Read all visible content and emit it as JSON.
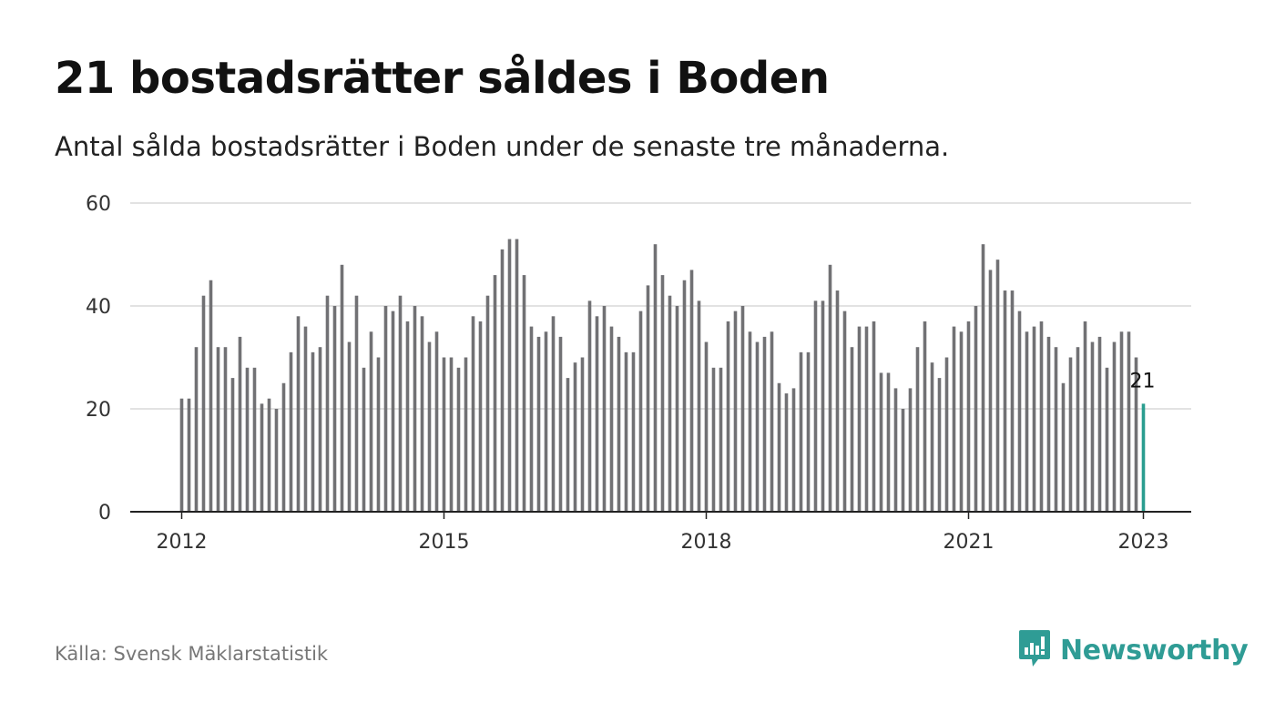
{
  "header": {
    "title": "21 bostadsrätter såldes i Boden",
    "subtitle": "Antal sålda bostadsrätter i Boden under de senaste tre månaderna."
  },
  "footer": {
    "source": "Källa: Svensk Mäklarstatistik",
    "brand": "Newsworthy"
  },
  "colors": {
    "bar": "#717174",
    "highlight": "#2a9d8f",
    "grid": "#d9d9d9",
    "axis": "#222222",
    "brand": "#2f9c95"
  },
  "icons": {
    "brand_logo": "bar-chart-speech-bubble-icon"
  },
  "chart_data": {
    "type": "bar",
    "title": "21 bostadsrätter såldes i Boden",
    "xlabel": "",
    "ylabel": "",
    "ylim": [
      0,
      60
    ],
    "yticks": [
      0,
      20,
      40,
      60
    ],
    "xticks": [
      "2012",
      "2015",
      "2018",
      "2021",
      "2023"
    ],
    "grid": true,
    "start": "2012-01",
    "end": "2023-01",
    "frequency": "monthly",
    "values": [
      22,
      22,
      32,
      42,
      45,
      32,
      32,
      26,
      34,
      28,
      28,
      21,
      22,
      20,
      25,
      31,
      38,
      36,
      31,
      32,
      42,
      40,
      48,
      33,
      42,
      28,
      35,
      30,
      40,
      39,
      42,
      37,
      40,
      38,
      33,
      35,
      30,
      30,
      28,
      30,
      38,
      37,
      42,
      46,
      51,
      53,
      53,
      46,
      36,
      34,
      35,
      38,
      34,
      26,
      29,
      30,
      41,
      38,
      40,
      36,
      34,
      31,
      31,
      39,
      44,
      52,
      46,
      42,
      40,
      45,
      47,
      41,
      33,
      28,
      28,
      37,
      39,
      40,
      35,
      33,
      34,
      35,
      25,
      23,
      24,
      31,
      31,
      41,
      41,
      48,
      43,
      39,
      32,
      36,
      36,
      37,
      27,
      27,
      24,
      20,
      24,
      32,
      37,
      29,
      26,
      30,
      36,
      35,
      37,
      40,
      52,
      47,
      49,
      43,
      43,
      39,
      35,
      36,
      37,
      34,
      32,
      25,
      30,
      32,
      37,
      33,
      34,
      28,
      33,
      35,
      35,
      30,
      21
    ],
    "highlight": {
      "label": "21",
      "value": 21,
      "period": "2023-01"
    }
  }
}
